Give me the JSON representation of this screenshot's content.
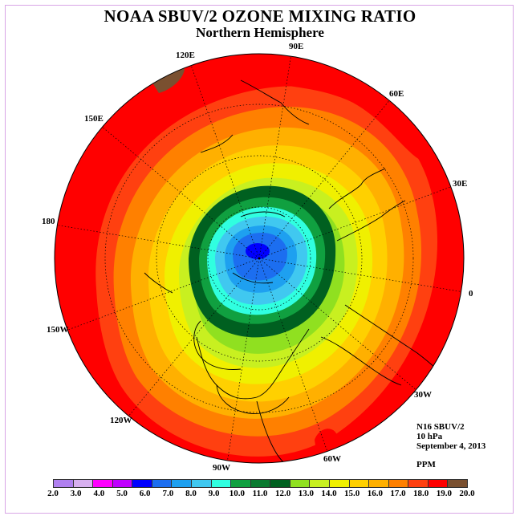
{
  "title": "NOAA SBUV/2 OZONE MIXING RATIO",
  "subtitle": "Northern Hemisphere",
  "info": {
    "instrument": "N16 SBUV/2",
    "level": "10 hPa",
    "date": "September 4, 2013",
    "units": "PPM"
  },
  "lon_labels": [
    "90E",
    "60E",
    "30E",
    "0",
    "30W",
    "60W",
    "90W",
    "120W",
    "150W",
    "180",
    "150E",
    "120E"
  ],
  "colorbar": {
    "ticks": [
      "2.0",
      "3.0",
      "4.0",
      "5.0",
      "6.0",
      "7.0",
      "8.0",
      "9.0",
      "10.0",
      "11.0",
      "12.0",
      "13.0",
      "14.0",
      "15.0",
      "16.0",
      "17.0",
      "18.0",
      "19.0",
      "20.0"
    ],
    "colors": [
      "#b080f0",
      "#d8b0f0",
      "#ff00ff",
      "#c000ff",
      "#0000ff",
      "#1c6ef0",
      "#1ea0f0",
      "#40c8f0",
      "#30ffe0",
      "#10a040",
      "#0a7a30",
      "#006020",
      "#90e020",
      "#c8f020",
      "#f0f000",
      "#ffd000",
      "#ffb000",
      "#ff8000",
      "#ff4010",
      "#ff0000",
      "#7a5030"
    ]
  },
  "map": {
    "bands_outer_to_inner": [
      "#ff0000",
      "#ff4010",
      "#ff8000",
      "#ffb000",
      "#ffd000",
      "#f0f000",
      "#c8f020",
      "#90e020",
      "#006020",
      "#10a040",
      "#30ffe0",
      "#40c8f0",
      "#1ea0f0",
      "#1c6ef0",
      "#0000ff"
    ],
    "extra_icons": [
      "brown-max-patch",
      "red-max-patch"
    ]
  }
}
